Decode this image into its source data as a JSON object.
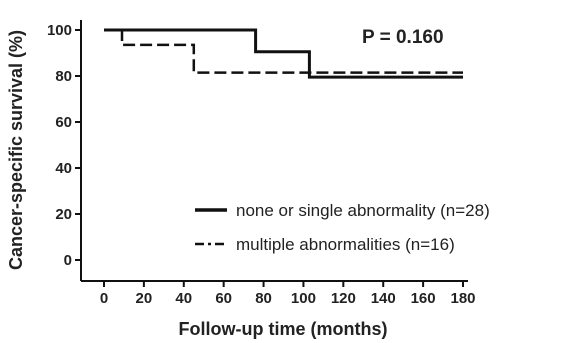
{
  "chart_data": {
    "type": "line",
    "subtype": "kaplan-meier step",
    "xlabel": "Follow-up time (months)",
    "ylabel": "Cancer-specific survival (%)",
    "xlim": [
      0,
      180
    ],
    "ylim": [
      0,
      100
    ],
    "xticks": [
      0,
      20,
      40,
      60,
      80,
      100,
      120,
      140,
      160,
      180
    ],
    "yticks": [
      0,
      20,
      40,
      60,
      80,
      100
    ],
    "grid": false,
    "legend_position": "bottom-right",
    "annotation": "P = 0.160",
    "series": [
      {
        "name": "none or single abnormality (n=28)",
        "line_style": "solid",
        "color": "#111111",
        "x": [
          0,
          76,
          76,
          103,
          103,
          180
        ],
        "y": [
          100,
          100,
          90.5,
          90.5,
          79.5,
          79.5
        ]
      },
      {
        "name": "multiple abnormalities (n=16)",
        "line_style": "dash-dot",
        "color": "#111111",
        "x": [
          0,
          9,
          9,
          45,
          45,
          180
        ],
        "y": [
          100,
          100,
          93.5,
          93.5,
          81.5,
          81.5
        ]
      }
    ]
  }
}
